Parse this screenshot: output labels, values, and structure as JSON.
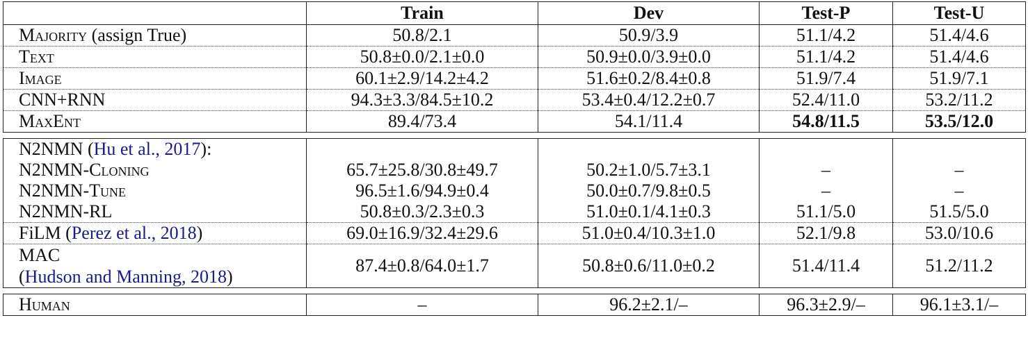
{
  "headers": [
    "",
    "Train",
    "Dev",
    "Test-P",
    "Test-U"
  ],
  "block1": [
    {
      "name": "Majority",
      "suffix": " (assign True)",
      "train": "50.8/2.1",
      "dev": "50.9/3.9",
      "testp": "51.1/4.2",
      "testu": "51.4/4.6"
    },
    {
      "name": "Text",
      "suffix": "",
      "train": "50.8±0.0/2.1±0.0",
      "dev": "50.9±0.0/3.9±0.0",
      "testp": "51.1/4.2",
      "testu": "51.4/4.6"
    },
    {
      "name": "Image",
      "suffix": "",
      "train": "60.1±2.9/14.2±4.2",
      "dev": "51.6±0.2/8.4±0.8",
      "testp": "51.9/7.4",
      "testu": "51.9/7.1"
    },
    {
      "name": "CNN+RNN",
      "suffix": "",
      "train": "94.3±3.3/84.5±10.2",
      "dev": "53.4±0.4/12.2±0.7",
      "testp": "52.4/11.0",
      "testu": "53.2/11.2"
    },
    {
      "name": "MaxEnt",
      "suffix": "",
      "train": "89.4/73.4",
      "dev": "54.1/11.4",
      "testp": "54.8/11.5",
      "testu": "53.5/12.0"
    }
  ],
  "n2nmn": {
    "title": "N2NMN (",
    "cite": "Hu et al., 2017",
    "tail": "):",
    "rows": [
      {
        "prefix": "N2NMN-",
        "name": "Cloning",
        "train": "65.7±25.8/30.8±49.7",
        "dev": "50.2±1.0/5.7±3.1",
        "testp": "–",
        "testu": "–"
      },
      {
        "prefix": "N2NMN-",
        "name": "Tune",
        "train": "96.5±1.6/94.9±0.4",
        "dev": "50.0±0.7/9.8±0.5",
        "testp": "–",
        "testu": "–"
      },
      {
        "prefix": "N2NMN-",
        "name": "RL",
        "train": "50.8±0.3/2.3±0.3",
        "dev": "51.0±0.1/4.1±0.3",
        "testp": "51.1/5.0",
        "testu": "51.5/5.0"
      }
    ]
  },
  "film": {
    "name": "FiLM (",
    "cite": "Perez et al., 2018",
    "tail": ")",
    "train": "69.0±16.9/32.4±29.6",
    "dev": "51.0±0.4/10.3±1.0",
    "testp": "52.1/9.8",
    "testu": "53.0/10.6"
  },
  "mac": {
    "name": "MAC",
    "cite_open": "(",
    "cite": "Hudson and Manning, 2018",
    "cite_close": ")",
    "train": "87.4±0.8/64.0±1.7",
    "dev": "50.8±0.6/11.0±0.2",
    "testp": "51.4/11.4",
    "testu": "51.2/11.2"
  },
  "human": {
    "name": "Human",
    "train": "–",
    "dev": "96.2±2.1/–",
    "testp": "96.3±2.9/–",
    "testu": "96.1±3.1/–"
  }
}
